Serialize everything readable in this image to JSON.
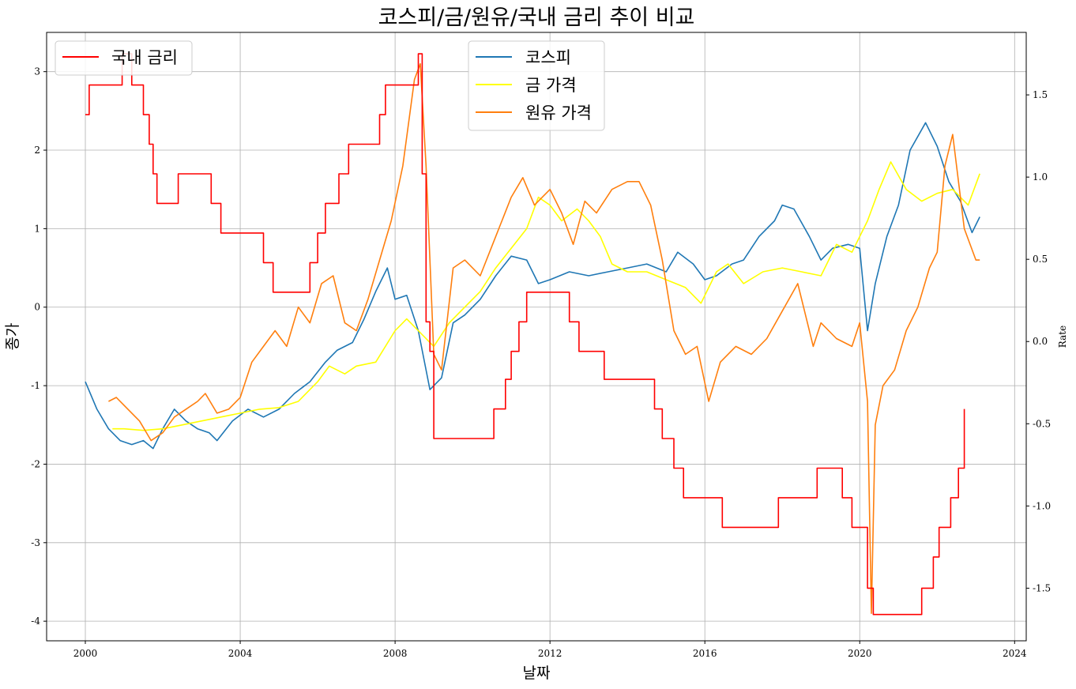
{
  "chart_data": {
    "type": "line",
    "title": "코스피/금/원유/국내 금리 추이 비교",
    "xlabel": "날짜",
    "ylabel": "종가",
    "ylabel_right": "Rate",
    "xlim": [
      1999.0,
      2024.3
    ],
    "ylim": [
      -4.25,
      3.5
    ],
    "ylim_right": [
      -1.82,
      1.88
    ],
    "x_ticks": [
      2000,
      2004,
      2008,
      2012,
      2016,
      2020,
      2024
    ],
    "y_ticks": [
      -4,
      -3,
      -2,
      -1,
      0,
      1,
      2,
      3
    ],
    "y_ticks_right": [
      -1.5,
      -1.0,
      -0.5,
      0.0,
      0.5,
      1.0,
      1.5
    ],
    "x_tick_labels": [
      "2000",
      "2004",
      "2008",
      "2012",
      "2016",
      "2020",
      "2024"
    ],
    "y_tick_labels": [
      "-4",
      "-3",
      "-2",
      "-1",
      "0",
      "1",
      "2",
      "3"
    ],
    "y_tick_labels_right": [
      "-1.5",
      "-1.0",
      "-0.5",
      "0.0",
      "0.5",
      "1.0",
      "1.5"
    ],
    "grid": true,
    "legend_left": {
      "placement": "top-left",
      "entries": [
        "국내 금리"
      ]
    },
    "legend_right": {
      "placement": "upper-center",
      "entries": [
        "코스피",
        "금 가격",
        "원유 가격"
      ]
    },
    "series": [
      {
        "name": "코스피",
        "color": "#1f77b4",
        "axis": "left",
        "x": [
          2000.0,
          2000.3,
          2000.6,
          2000.9,
          2001.2,
          2001.5,
          2001.75,
          2002.0,
          2002.3,
          2002.6,
          2002.9,
          2003.2,
          2003.4,
          2003.8,
          2004.2,
          2004.6,
          2005.0,
          2005.4,
          2005.8,
          2006.2,
          2006.5,
          2006.9,
          2007.2,
          2007.5,
          2007.8,
          2008.0,
          2008.3,
          2008.6,
          2008.9,
          2009.2,
          2009.5,
          2009.8,
          2010.2,
          2010.6,
          2011.0,
          2011.4,
          2011.7,
          2012.0,
          2012.5,
          2013.0,
          2013.5,
          2014.0,
          2014.5,
          2015.0,
          2015.3,
          2015.7,
          2016.0,
          2016.3,
          2016.7,
          2017.0,
          2017.4,
          2017.8,
          2018.0,
          2018.3,
          2018.7,
          2019.0,
          2019.3,
          2019.7,
          2020.0,
          2020.2,
          2020.4,
          2020.7,
          2021.0,
          2021.3,
          2021.7,
          2022.0,
          2022.3,
          2022.6,
          2022.9,
          2023.1
        ],
        "values": [
          -0.95,
          -1.3,
          -1.55,
          -1.7,
          -1.75,
          -1.7,
          -1.8,
          -1.55,
          -1.3,
          -1.45,
          -1.55,
          -1.6,
          -1.7,
          -1.45,
          -1.3,
          -1.4,
          -1.3,
          -1.1,
          -0.95,
          -0.7,
          -0.55,
          -0.45,
          -0.15,
          0.2,
          0.5,
          0.1,
          0.15,
          -0.3,
          -1.05,
          -0.9,
          -0.2,
          -0.1,
          0.1,
          0.4,
          0.65,
          0.6,
          0.3,
          0.35,
          0.45,
          0.4,
          0.45,
          0.5,
          0.55,
          0.45,
          0.7,
          0.55,
          0.35,
          0.4,
          0.55,
          0.6,
          0.9,
          1.1,
          1.3,
          1.25,
          0.9,
          0.6,
          0.75,
          0.8,
          0.75,
          -0.3,
          0.3,
          0.9,
          1.3,
          2.0,
          2.35,
          2.05,
          1.6,
          1.35,
          0.95,
          1.15
        ]
      },
      {
        "name": "금 가격",
        "color": "#ffff00",
        "axis": "left",
        "x": [
          2000.7,
          2001.0,
          2001.5,
          2002.0,
          2002.5,
          2003.0,
          2003.5,
          2004.0,
          2004.5,
          2005.0,
          2005.5,
          2006.0,
          2006.3,
          2006.7,
          2007.0,
          2007.5,
          2008.0,
          2008.3,
          2008.7,
          2009.0,
          2009.4,
          2009.8,
          2010.2,
          2010.6,
          2011.0,
          2011.4,
          2011.7,
          2012.0,
          2012.3,
          2012.7,
          2013.0,
          2013.3,
          2013.6,
          2014.0,
          2014.5,
          2015.0,
          2015.5,
          2015.9,
          2016.3,
          2016.6,
          2017.0,
          2017.5,
          2018.0,
          2018.5,
          2019.0,
          2019.4,
          2019.8,
          2020.2,
          2020.5,
          2020.8,
          2021.2,
          2021.6,
          2022.0,
          2022.4,
          2022.8,
          2023.1
        ],
        "values": [
          -1.55,
          -1.55,
          -1.57,
          -1.55,
          -1.5,
          -1.45,
          -1.4,
          -1.35,
          -1.3,
          -1.28,
          -1.2,
          -0.95,
          -0.75,
          -0.85,
          -0.75,
          -0.7,
          -0.3,
          -0.15,
          -0.35,
          -0.5,
          -0.2,
          0.0,
          0.2,
          0.5,
          0.75,
          1.0,
          1.4,
          1.3,
          1.1,
          1.25,
          1.1,
          0.9,
          0.55,
          0.45,
          0.45,
          0.35,
          0.25,
          0.05,
          0.45,
          0.55,
          0.3,
          0.45,
          0.5,
          0.45,
          0.4,
          0.8,
          0.7,
          1.1,
          1.5,
          1.85,
          1.5,
          1.35,
          1.45,
          1.5,
          1.3,
          1.7
        ]
      },
      {
        "name": "원유 가격",
        "color": "#ff7f0e",
        "axis": "left",
        "x": [
          2000.6,
          2000.8,
          2001.1,
          2001.4,
          2001.7,
          2002.0,
          2002.3,
          2002.6,
          2002.9,
          2003.1,
          2003.4,
          2003.7,
          2004.0,
          2004.3,
          2004.6,
          2004.9,
          2005.2,
          2005.5,
          2005.8,
          2006.1,
          2006.4,
          2006.7,
          2007.0,
          2007.3,
          2007.6,
          2007.9,
          2008.2,
          2008.5,
          2008.65,
          2008.8,
          2009.0,
          2009.2,
          2009.5,
          2009.8,
          2010.2,
          2010.6,
          2011.0,
          2011.3,
          2011.6,
          2012.0,
          2012.3,
          2012.6,
          2012.9,
          2013.2,
          2013.6,
          2014.0,
          2014.3,
          2014.6,
          2014.9,
          2015.2,
          2015.5,
          2015.8,
          2016.1,
          2016.4,
          2016.8,
          2017.2,
          2017.6,
          2018.0,
          2018.4,
          2018.8,
          2019.0,
          2019.4,
          2019.8,
          2020.0,
          2020.2,
          2020.3,
          2020.4,
          2020.6,
          2020.9,
          2021.2,
          2021.5,
          2021.8,
          2022.0,
          2022.2,
          2022.4,
          2022.7,
          2023.0,
          2023.1
        ],
        "values": [
          -1.2,
          -1.15,
          -1.3,
          -1.45,
          -1.7,
          -1.6,
          -1.4,
          -1.3,
          -1.2,
          -1.1,
          -1.35,
          -1.3,
          -1.15,
          -0.7,
          -0.5,
          -0.3,
          -0.5,
          0.0,
          -0.2,
          0.3,
          0.4,
          -0.2,
          -0.3,
          0.1,
          0.6,
          1.1,
          1.8,
          2.9,
          3.1,
          1.8,
          -0.6,
          -0.8,
          0.5,
          0.6,
          0.4,
          0.9,
          1.4,
          1.65,
          1.3,
          1.5,
          1.2,
          0.8,
          1.35,
          1.2,
          1.5,
          1.6,
          1.6,
          1.3,
          0.6,
          -0.3,
          -0.6,
          -0.5,
          -1.2,
          -0.7,
          -0.5,
          -0.6,
          -0.4,
          -0.05,
          0.3,
          -0.5,
          -0.2,
          -0.4,
          -0.5,
          -0.2,
          -1.2,
          -3.9,
          -1.5,
          -1.0,
          -0.8,
          -0.3,
          0.0,
          0.5,
          0.7,
          1.8,
          2.2,
          1.0,
          0.6,
          0.6
        ]
      },
      {
        "name": "국내 금리",
        "color": "#ff0000",
        "axis": "right",
        "step": true,
        "x": [
          2000.0,
          2000.1,
          2000.95,
          2001.2,
          2001.5,
          2001.65,
          2001.75,
          2001.85,
          2002.4,
          2003.25,
          2003.5,
          2004.6,
          2004.85,
          2005.8,
          2006.0,
          2006.2,
          2006.55,
          2006.8,
          2007.6,
          2007.75,
          2008.6,
          2008.7,
          2008.8,
          2008.9,
          2009.0,
          2009.1,
          2010.55,
          2010.85,
          2011.0,
          2011.2,
          2011.4,
          2012.5,
          2012.75,
          2013.4,
          2014.7,
          2014.9,
          2015.2,
          2015.45,
          2016.45,
          2017.9,
          2018.9,
          2019.55,
          2019.8,
          2020.2,
          2020.35,
          2021.6,
          2021.9,
          2022.05,
          2022.35,
          2022.55,
          2022.7
        ],
        "values": [
          1.38,
          1.56,
          1.75,
          1.56,
          1.38,
          1.2,
          1.02,
          0.84,
          1.02,
          0.84,
          0.66,
          0.48,
          0.3,
          0.48,
          0.66,
          0.84,
          1.02,
          1.2,
          1.38,
          1.56,
          1.75,
          1.02,
          0.12,
          -0.06,
          -0.59,
          -0.59,
          -0.41,
          -0.23,
          -0.06,
          0.12,
          0.3,
          0.12,
          -0.06,
          -0.23,
          -0.41,
          -0.59,
          -0.77,
          -0.95,
          -1.13,
          -0.95,
          -0.77,
          -0.95,
          -1.13,
          -1.5,
          -1.66,
          -1.5,
          -1.31,
          -1.13,
          -0.95,
          -0.77,
          -0.41
        ]
      }
    ]
  }
}
